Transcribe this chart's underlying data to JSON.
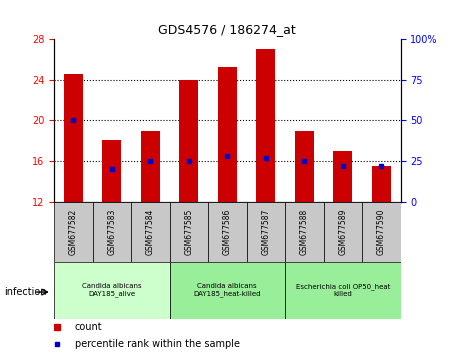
{
  "title": "GDS4576 / 186274_at",
  "samples": [
    "GSM677582",
    "GSM677583",
    "GSM677584",
    "GSM677585",
    "GSM677586",
    "GSM677587",
    "GSM677588",
    "GSM677589",
    "GSM677590"
  ],
  "counts": [
    24.6,
    18.1,
    19.0,
    24.0,
    25.2,
    27.0,
    19.0,
    17.0,
    15.5
  ],
  "percentiles": [
    50,
    20,
    25,
    25,
    28,
    27,
    25,
    22,
    22
  ],
  "ylim_left": [
    12,
    28
  ],
  "ylim_right": [
    0,
    100
  ],
  "yticks_left": [
    12,
    16,
    20,
    24,
    28
  ],
  "yticks_right": [
    0,
    25,
    50,
    75,
    100
  ],
  "groups": [
    {
      "label": "Candida albicans\nDAY185_alive",
      "start": 0,
      "end": 3,
      "color": "#ccffcc"
    },
    {
      "label": "Candida albicans\nDAY185_heat-killed",
      "start": 3,
      "end": 6,
      "color": "#99ee99"
    },
    {
      "label": "Escherichia coli OP50_heat\nkilled",
      "start": 6,
      "end": 9,
      "color": "#99ee99"
    }
  ],
  "infection_label": "infection",
  "bar_color": "#cc0000",
  "percentile_color": "#0000cc",
  "bar_width": 0.5,
  "bg_xtick": "#c8c8c8"
}
